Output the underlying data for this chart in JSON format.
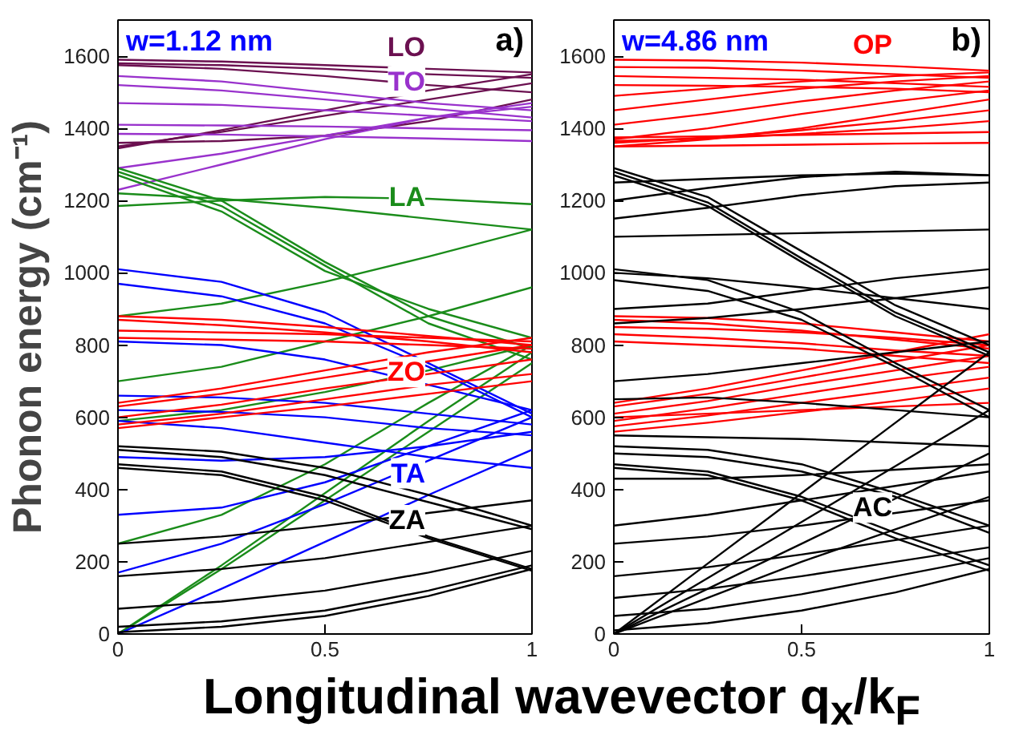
{
  "chart_data": [
    {
      "type": "line",
      "title": "w=1.12 nm",
      "ylabel": "Phonon energy (cm⁻¹)",
      "xlabel": "Longitudinal wavevector q$_{x}$/k$_{F}$",
      "x": [
        0,
        0.25,
        0.5,
        0.75,
        1
      ],
      "xlim": [
        0,
        1
      ],
      "ylim": [
        0,
        1700
      ],
      "xticks": [
        0,
        0.5,
        1
      ],
      "yticks": [
        0,
        200,
        400,
        600,
        800,
        1000,
        1200,
        1400,
        1600
      ],
      "annotations": [
        "a)"
      ],
      "series": [
        {
          "name": "LO",
          "color": "#6b1050",
          "values": [
            1590,
            1585,
            1575,
            1565,
            1555
          ]
        },
        {
          "color": "#6b1050",
          "values": [
            1580,
            1575,
            1565,
            1550,
            1540
          ]
        },
        {
          "color": "#6b1050",
          "values": [
            1575,
            1565,
            1545,
            1520,
            1500
          ]
        },
        {
          "color": "#6b1050",
          "values": [
            1345,
            1395,
            1450,
            1505,
            1550
          ]
        },
        {
          "color": "#6b1050",
          "values": [
            1350,
            1390,
            1435,
            1480,
            1525
          ]
        },
        {
          "color": "#6b1050",
          "values": [
            1360,
            1365,
            1380,
            1420,
            1480
          ]
        },
        {
          "name": "TO",
          "color": "#9932cc",
          "values": [
            1545,
            1530,
            1500,
            1470,
            1450
          ]
        },
        {
          "color": "#9932cc",
          "values": [
            1520,
            1505,
            1480,
            1455,
            1430
          ]
        },
        {
          "color": "#9932cc",
          "values": [
            1470,
            1465,
            1450,
            1435,
            1420
          ]
        },
        {
          "color": "#9932cc",
          "values": [
            1410,
            1408,
            1405,
            1400,
            1395
          ]
        },
        {
          "color": "#9932cc",
          "values": [
            1385,
            1383,
            1378,
            1372,
            1365
          ]
        },
        {
          "color": "#9932cc",
          "values": [
            1230,
            1300,
            1370,
            1430,
            1460
          ]
        },
        {
          "color": "#9932cc",
          "values": [
            1290,
            1330,
            1380,
            1430,
            1470
          ]
        },
        {
          "color": "#1a8c1a",
          "values": [
            1290,
            1200,
            1030,
            880,
            790
          ]
        },
        {
          "color": "#1a8c1a",
          "values": [
            1280,
            1185,
            1020,
            860,
            760
          ]
        },
        {
          "color": "#1a8c1a",
          "values": [
            1270,
            1170,
            1005,
            900,
            820
          ]
        },
        {
          "name": "LA",
          "color": "#1a8c1a",
          "values": [
            1220,
            1205,
            1180,
            1150,
            1120
          ]
        },
        {
          "color": "#1a8c1a",
          "values": [
            1185,
            1200,
            1210,
            1205,
            1190
          ]
        },
        {
          "color": "#1a8c1a",
          "values": [
            880,
            915,
            975,
            1045,
            1120
          ]
        },
        {
          "color": "#1a8c1a",
          "values": [
            700,
            740,
            810,
            880,
            960
          ]
        },
        {
          "color": "#1a8c1a",
          "values": [
            590,
            620,
            670,
            730,
            800
          ]
        },
        {
          "color": "#1a8c1a",
          "values": [
            250,
            330,
            470,
            640,
            800
          ]
        },
        {
          "color": "#1a8c1a",
          "values": [
            0,
            190,
            390,
            590,
            780
          ]
        },
        {
          "color": "#1a8c1a",
          "values": [
            0,
            180,
            370,
            560,
            750
          ]
        },
        {
          "color": "#0000ff",
          "values": [
            1010,
            975,
            890,
            750,
            610
          ]
        },
        {
          "color": "#0000ff",
          "values": [
            970,
            935,
            860,
            740,
            600
          ]
        },
        {
          "color": "#0000ff",
          "values": [
            810,
            800,
            760,
            690,
            620
          ]
        },
        {
          "color": "#0000ff",
          "values": [
            660,
            655,
            640,
            610,
            580
          ]
        },
        {
          "color": "#0000ff",
          "values": [
            620,
            615,
            600,
            570,
            550
          ]
        },
        {
          "color": "#0000ff",
          "values": [
            590,
            570,
            530,
            490,
            460
          ]
        },
        {
          "color": "#0000ff",
          "values": [
            330,
            350,
            420,
            520,
            620
          ]
        },
        {
          "color": "#0000ff",
          "values": [
            170,
            250,
            360,
            480,
            600
          ]
        },
        {
          "name": "TA",
          "color": "#0000ff",
          "values": [
            0,
            125,
            255,
            385,
            510
          ]
        },
        {
          "color": "#0000ff",
          "values": [
            490,
            480,
            490,
            520,
            560
          ]
        },
        {
          "color": "#ff0000",
          "values": [
            880,
            870,
            850,
            825,
            800
          ]
        },
        {
          "color": "#ff0000",
          "values": [
            870,
            855,
            835,
            810,
            780
          ]
        },
        {
          "color": "#ff0000",
          "values": [
            840,
            835,
            830,
            820,
            810
          ]
        },
        {
          "color": "#ff0000",
          "values": [
            820,
            815,
            810,
            800,
            790
          ]
        },
        {
          "color": "#ff0000",
          "values": [
            640,
            680,
            730,
            780,
            820
          ]
        },
        {
          "color": "#ff0000",
          "values": [
            630,
            665,
            710,
            755,
            800
          ]
        },
        {
          "color": "#ff0000",
          "values": [
            600,
            635,
            680,
            720,
            760
          ]
        },
        {
          "color": "#ff0000",
          "values": [
            580,
            610,
            650,
            690,
            720
          ]
        },
        {
          "name": "ZO",
          "color": "#ff0000",
          "values": [
            570,
            600,
            630,
            665,
            700
          ]
        },
        {
          "color": "#000000",
          "values": [
            520,
            505,
            460,
            385,
            300
          ]
        },
        {
          "color": "#000000",
          "values": [
            510,
            490,
            440,
            365,
            290
          ]
        },
        {
          "color": "#000000",
          "values": [
            470,
            450,
            380,
            270,
            180
          ]
        },
        {
          "color": "#000000",
          "values": [
            460,
            440,
            370,
            265,
            175
          ]
        },
        {
          "color": "#000000",
          "values": [
            250,
            270,
            300,
            335,
            370
          ]
        },
        {
          "name": "ZA",
          "color": "#000000",
          "values": [
            160,
            180,
            210,
            255,
            300
          ]
        },
        {
          "color": "#000000",
          "values": [
            70,
            90,
            120,
            170,
            230
          ]
        },
        {
          "color": "#000000",
          "values": [
            20,
            35,
            65,
            120,
            190
          ]
        },
        {
          "color": "#000000",
          "values": [
            5,
            20,
            50,
            105,
            180
          ]
        }
      ]
    },
    {
      "type": "line",
      "title": "w=4.86 nm",
      "x": [
        0,
        0.25,
        0.5,
        0.75,
        1
      ],
      "xlim": [
        0,
        1
      ],
      "ylim": [
        0,
        1700
      ],
      "xticks": [
        0,
        0.5,
        1
      ],
      "yticks": [
        0,
        200,
        400,
        600,
        800,
        1000,
        1200,
        1400,
        1600
      ],
      "annotations": [
        "b)"
      ],
      "series": [
        {
          "name": "OP",
          "color": "#ff0000",
          "values": [
            1590,
            1588,
            1582,
            1572,
            1560
          ]
        },
        {
          "color": "#ff0000",
          "values": [
            1570,
            1568,
            1560,
            1550,
            1540
          ]
        },
        {
          "color": "#ff0000",
          "values": [
            1545,
            1540,
            1535,
            1525,
            1515
          ]
        },
        {
          "color": "#ff0000",
          "values": [
            1520,
            1518,
            1515,
            1510,
            1500
          ]
        },
        {
          "color": "#ff0000",
          "values": [
            1490,
            1510,
            1530,
            1545,
            1555
          ]
        },
        {
          "color": "#ff0000",
          "values": [
            1450,
            1480,
            1510,
            1530,
            1545
          ]
        },
        {
          "color": "#ff0000",
          "values": [
            1410,
            1440,
            1475,
            1505,
            1530
          ]
        },
        {
          "color": "#ff0000",
          "values": [
            1370,
            1400,
            1440,
            1475,
            1505
          ]
        },
        {
          "color": "#ff0000",
          "values": [
            1350,
            1370,
            1400,
            1440,
            1480
          ]
        },
        {
          "color": "#ff0000",
          "values": [
            1360,
            1375,
            1395,
            1420,
            1450
          ]
        },
        {
          "color": "#ff0000",
          "values": [
            1365,
            1372,
            1385,
            1400,
            1420
          ]
        },
        {
          "color": "#ff0000",
          "values": [
            1375,
            1378,
            1382,
            1386,
            1390
          ]
        },
        {
          "color": "#ff0000",
          "values": [
            1350,
            1352,
            1355,
            1358,
            1360
          ]
        },
        {
          "color": "#ff0000",
          "values": [
            880,
            875,
            860,
            835,
            810
          ]
        },
        {
          "color": "#ff0000",
          "values": [
            870,
            860,
            840,
            815,
            790
          ]
        },
        {
          "color": "#ff0000",
          "values": [
            850,
            845,
            835,
            820,
            800
          ]
        },
        {
          "color": "#ff0000",
          "values": [
            830,
            820,
            805,
            785,
            770
          ]
        },
        {
          "color": "#ff0000",
          "values": [
            810,
            800,
            790,
            770,
            750
          ]
        },
        {
          "color": "#ff0000",
          "values": [
            640,
            680,
            730,
            780,
            830
          ]
        },
        {
          "color": "#ff0000",
          "values": [
            630,
            665,
            710,
            755,
            800
          ]
        },
        {
          "color": "#ff0000",
          "values": [
            610,
            645,
            690,
            730,
            770
          ]
        },
        {
          "color": "#ff0000",
          "values": [
            590,
            625,
            665,
            705,
            740
          ]
        },
        {
          "color": "#ff0000",
          "values": [
            575,
            605,
            640,
            675,
            710
          ]
        },
        {
          "color": "#ff0000",
          "values": [
            560,
            585,
            615,
            645,
            680
          ]
        },
        {
          "color": "#ff0000",
          "values": [
            600,
            610,
            620,
            630,
            640
          ]
        },
        {
          "color": "#000000",
          "values": [
            1290,
            1210,
            1060,
            910,
            800
          ]
        },
        {
          "color": "#000000",
          "values": [
            1280,
            1195,
            1040,
            890,
            780
          ]
        },
        {
          "color": "#000000",
          "values": [
            1270,
            1185,
            1030,
            880,
            770
          ]
        },
        {
          "color": "#000000",
          "values": [
            1200,
            1235,
            1265,
            1280,
            1270
          ]
        },
        {
          "color": "#000000",
          "values": [
            1250,
            1260,
            1270,
            1275,
            1270
          ]
        },
        {
          "color": "#000000",
          "values": [
            1150,
            1180,
            1215,
            1240,
            1250
          ]
        },
        {
          "color": "#000000",
          "values": [
            1100,
            1105,
            1110,
            1115,
            1120
          ]
        },
        {
          "color": "#000000",
          "values": [
            1010,
            980,
            890,
            750,
            620
          ]
        },
        {
          "color": "#000000",
          "values": [
            980,
            950,
            870,
            740,
            600
          ]
        },
        {
          "color": "#000000",
          "values": [
            900,
            915,
            950,
            985,
            1010
          ]
        },
        {
          "color": "#000000",
          "values": [
            860,
            875,
            900,
            930,
            960
          ]
        },
        {
          "color": "#000000",
          "values": [
            1000,
            985,
            960,
            930,
            900
          ]
        },
        {
          "color": "#000000",
          "values": [
            550,
            545,
            540,
            530,
            520
          ]
        },
        {
          "color": "#000000",
          "values": [
            520,
            510,
            470,
            390,
            300
          ]
        },
        {
          "color": "#000000",
          "values": [
            500,
            490,
            450,
            380,
            280
          ]
        },
        {
          "color": "#000000",
          "values": [
            470,
            450,
            380,
            280,
            190
          ]
        },
        {
          "color": "#000000",
          "values": [
            460,
            440,
            370,
            265,
            175
          ]
        },
        {
          "color": "#000000",
          "values": [
            430,
            430,
            440,
            455,
            470
          ]
        },
        {
          "color": "#000000",
          "values": [
            300,
            330,
            370,
            410,
            450
          ]
        },
        {
          "color": "#000000",
          "values": [
            250,
            270,
            300,
            335,
            370
          ]
        },
        {
          "color": "#000000",
          "values": [
            160,
            185,
            220,
            260,
            300
          ]
        },
        {
          "color": "#000000",
          "values": [
            100,
            125,
            160,
            200,
            240
          ]
        },
        {
          "color": "#000000",
          "values": [
            50,
            70,
            110,
            160,
            210
          ]
        },
        {
          "color": "#000000",
          "values": [
            10,
            30,
            65,
            115,
            180
          ]
        },
        {
          "color": "#000000",
          "values": [
            0,
            155,
            310,
            465,
            620
          ]
        },
        {
          "color": "#000000",
          "values": [
            0,
            195,
            390,
            585,
            780
          ]
        },
        {
          "color": "#000000",
          "values": [
            0,
            125,
            250,
            375,
            500
          ]
        },
        {
          "name": "AC",
          "color": "#000000",
          "values": [
            0,
            100,
            200,
            290,
            380
          ]
        },
        {
          "color": "#000000",
          "values": [
            700,
            720,
            750,
            780,
            810
          ]
        },
        {
          "color": "#000000",
          "values": [
            650,
            655,
            640,
            620,
            600
          ]
        }
      ]
    }
  ]
}
